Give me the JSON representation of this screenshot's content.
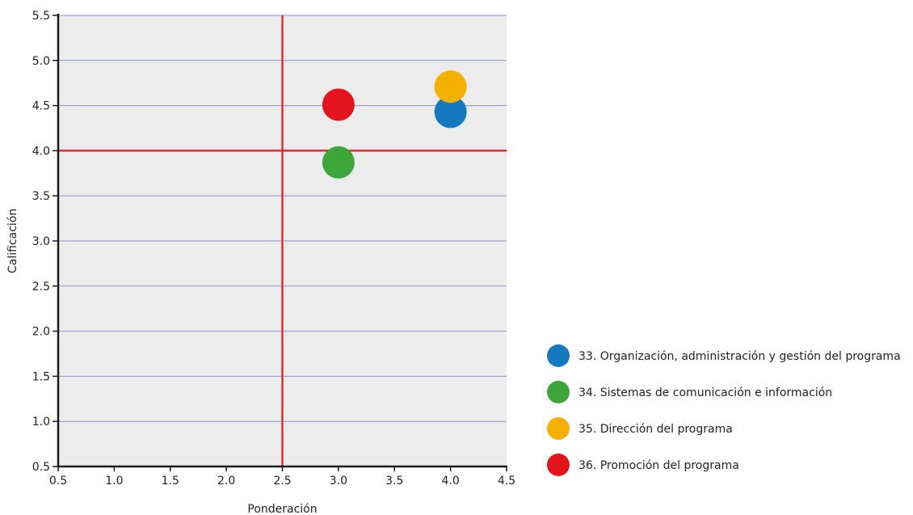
{
  "chart_data": {
    "type": "scatter",
    "xlabel": "Ponderación",
    "ylabel": "Calificación",
    "xlim": [
      0.5,
      4.5
    ],
    "ylim": [
      0.5,
      5.5
    ],
    "x_ticks": [
      "0.5",
      "1.0",
      "1.5",
      "2.0",
      "2.5",
      "3.0",
      "3.5",
      "4.0",
      "4.5"
    ],
    "y_ticks": [
      "0.5",
      "1.0",
      "1.5",
      "2.0",
      "2.5",
      "3.0",
      "3.5",
      "4.0",
      "4.5",
      "5.0",
      "5.5"
    ],
    "grid": "horizontal",
    "plot_background": "#ececec",
    "gridline_color": "#8a93c9",
    "reference_lines": {
      "x": 2.5,
      "y": 4.0,
      "color": "#e8141e"
    },
    "legend_position": "bottom-right",
    "series": [
      {
        "name": "33. Organización, administración y gestión del programa",
        "color": "#1479be",
        "points": [
          {
            "x": 4.0,
            "y": 4.43
          }
        ]
      },
      {
        "name": "34. Sistemas de comunicación e información",
        "color": "#3ca63a",
        "points": [
          {
            "x": 3.0,
            "y": 3.87
          }
        ]
      },
      {
        "name": "35. Dirección del programa",
        "color": "#f4b000",
        "points": [
          {
            "x": 4.0,
            "y": 4.71
          }
        ]
      },
      {
        "name": "36. Promoción del programa",
        "color": "#e3141b",
        "points": [
          {
            "x": 3.0,
            "y": 4.51
          }
        ]
      }
    ]
  }
}
